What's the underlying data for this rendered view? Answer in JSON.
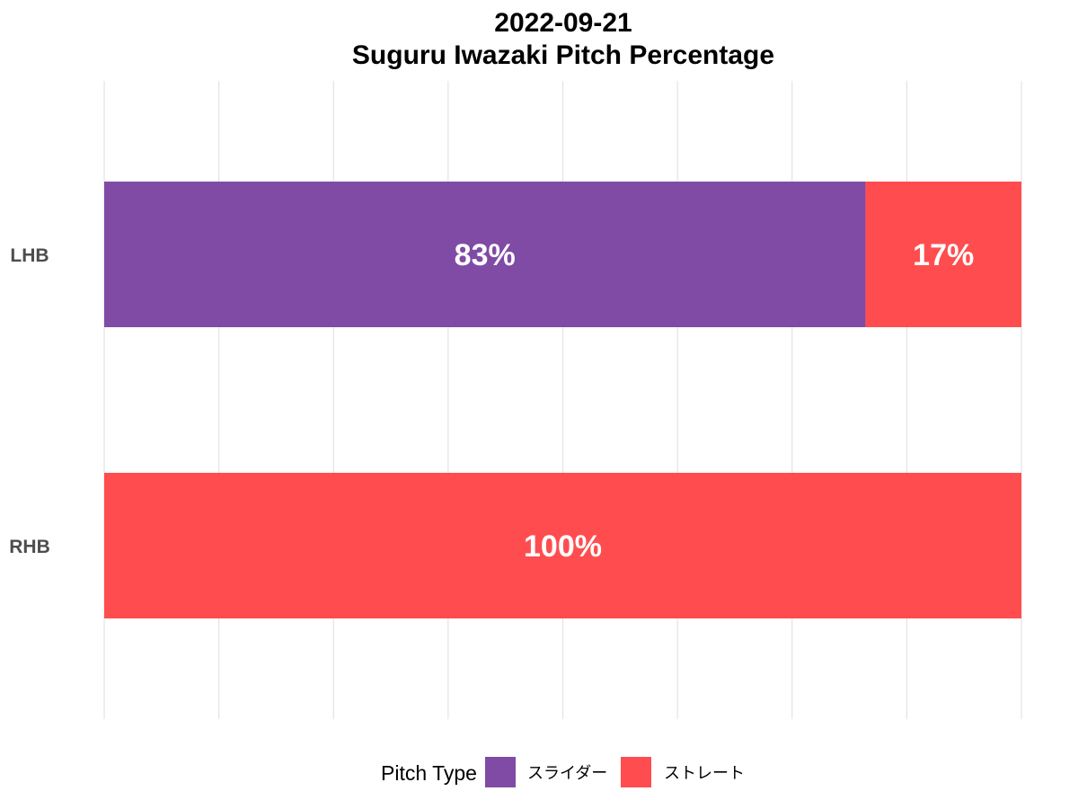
{
  "chart_data": {
    "type": "bar",
    "orientation": "horizontal",
    "stacked": true,
    "title": "2022-09-21",
    "subtitle": "Suguru Iwazaki Pitch Percentage",
    "categories": [
      "LHB",
      "RHB"
    ],
    "series": [
      {
        "name": "スライダー",
        "color": "#7f4ba5",
        "values": [
          83,
          0
        ]
      },
      {
        "name": "ストレート",
        "color": "#ff4d4f",
        "values": [
          17,
          100
        ]
      }
    ],
    "data_labels": [
      {
        "category": "LHB",
        "series": "スライダー",
        "text": "83%"
      },
      {
        "category": "LHB",
        "series": "ストレート",
        "text": "17%"
      },
      {
        "category": "RHB",
        "series": "ストレート",
        "text": "100%"
      }
    ],
    "xlim": [
      0,
      100
    ],
    "grid": true,
    "legend": {
      "title": "Pitch Type",
      "position": "bottom"
    }
  }
}
